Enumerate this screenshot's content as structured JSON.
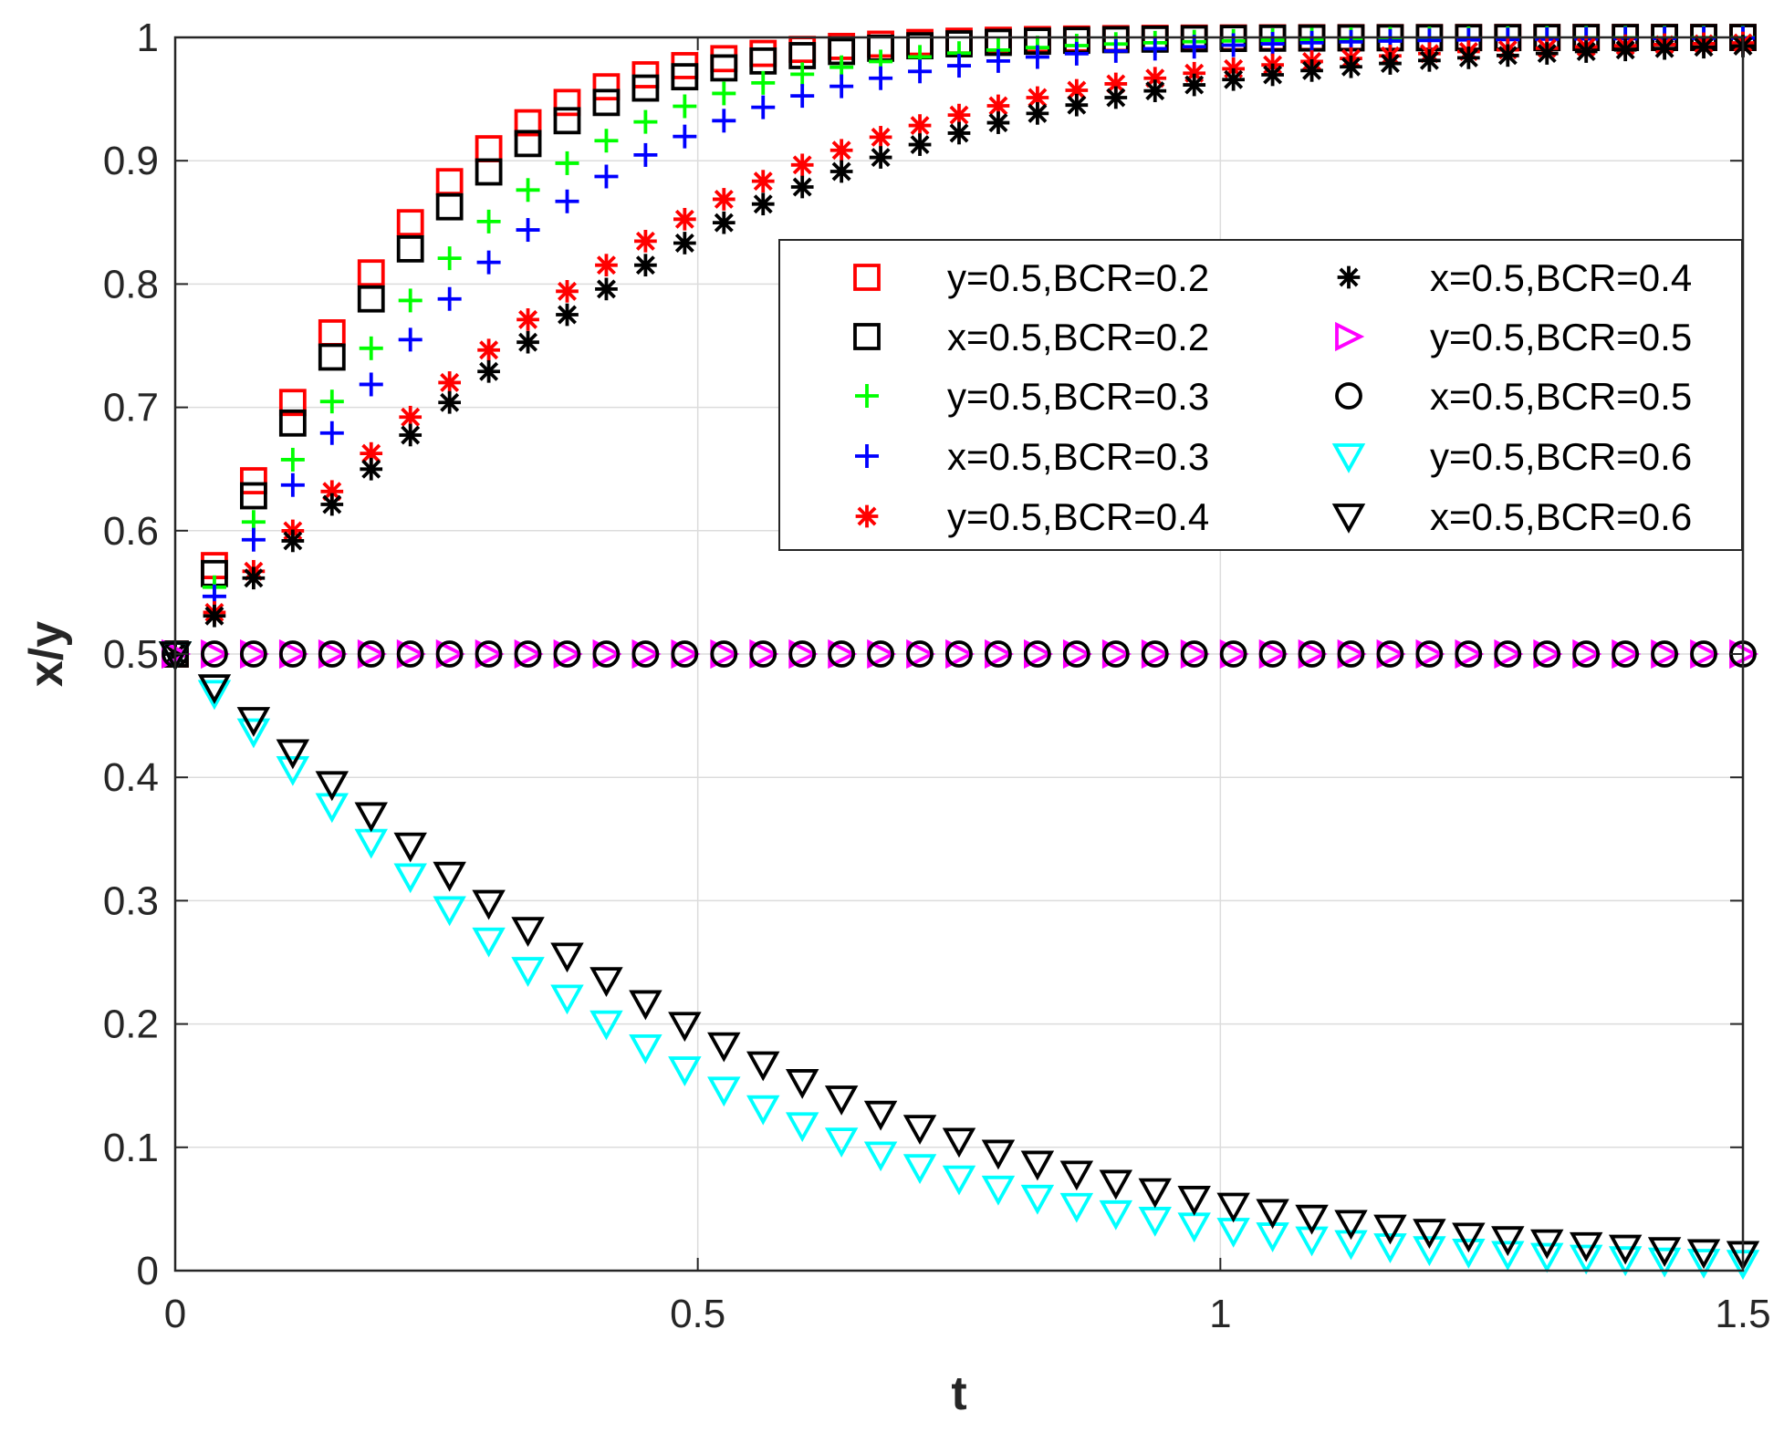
{
  "chart_data": {
    "type": "scatter",
    "title": "",
    "xlabel": "t",
    "ylabel": "x/y",
    "xlim": [
      0,
      1.5
    ],
    "ylim": [
      0,
      1
    ],
    "grid": true,
    "legend_position": "top-right",
    "legend_columns": 2,
    "x_ticks": [
      0,
      0.5,
      1,
      1.5
    ],
    "x_tick_labels": [
      "0",
      "0.5",
      "1",
      "1.5"
    ],
    "y_ticks": [
      0,
      0.1,
      0.2,
      0.3,
      0.4,
      0.5,
      0.6,
      0.7,
      0.8,
      0.9,
      1
    ],
    "y_tick_labels": [
      "0",
      "0.1",
      "0.2",
      "0.3",
      "0.4",
      "0.5",
      "0.6",
      "0.7",
      "0.8",
      "0.9",
      "1"
    ],
    "t_step": 0.0375,
    "series": [
      {
        "name": "y=0.5,BCR=0.2",
        "marker": "square",
        "color": "#ff0000",
        "model": "up",
        "rate": 7.7
      },
      {
        "name": "x=0.5,BCR=0.2",
        "marker": "square",
        "color": "#000000",
        "model": "up",
        "rate": 7.0
      },
      {
        "name": "y=0.5,BCR=0.3",
        "marker": "plus",
        "color": "#00ff00",
        "model": "up",
        "rate": 5.8
      },
      {
        "name": "x=0.5,BCR=0.3",
        "marker": "plus",
        "color": "#0000ff",
        "model": "up",
        "rate": 5.0
      },
      {
        "name": "y=0.5,BCR=0.4",
        "marker": "asterisk",
        "color": "#ff0000",
        "model": "up",
        "rate": 3.6
      },
      {
        "name": "x=0.5,BCR=0.4",
        "marker": "asterisk",
        "color": "#000000",
        "model": "up",
        "rate": 3.3
      },
      {
        "name": "y=0.5,BCR=0.5",
        "marker": "triangle-right",
        "color": "#ff00ff",
        "model": "flat",
        "rate": 0
      },
      {
        "name": "x=0.5,BCR=0.5",
        "marker": "circle",
        "color": "#000000",
        "model": "flat",
        "rate": 0
      },
      {
        "name": "y=0.5,BCR=0.6",
        "marker": "triangle-down",
        "color": "#00ffff",
        "model": "down",
        "rate": 3.35
      },
      {
        "name": "x=0.5,BCR=0.6",
        "marker": "triangle-down",
        "color": "#000000",
        "model": "down",
        "rate": 2.85
      }
    ]
  }
}
